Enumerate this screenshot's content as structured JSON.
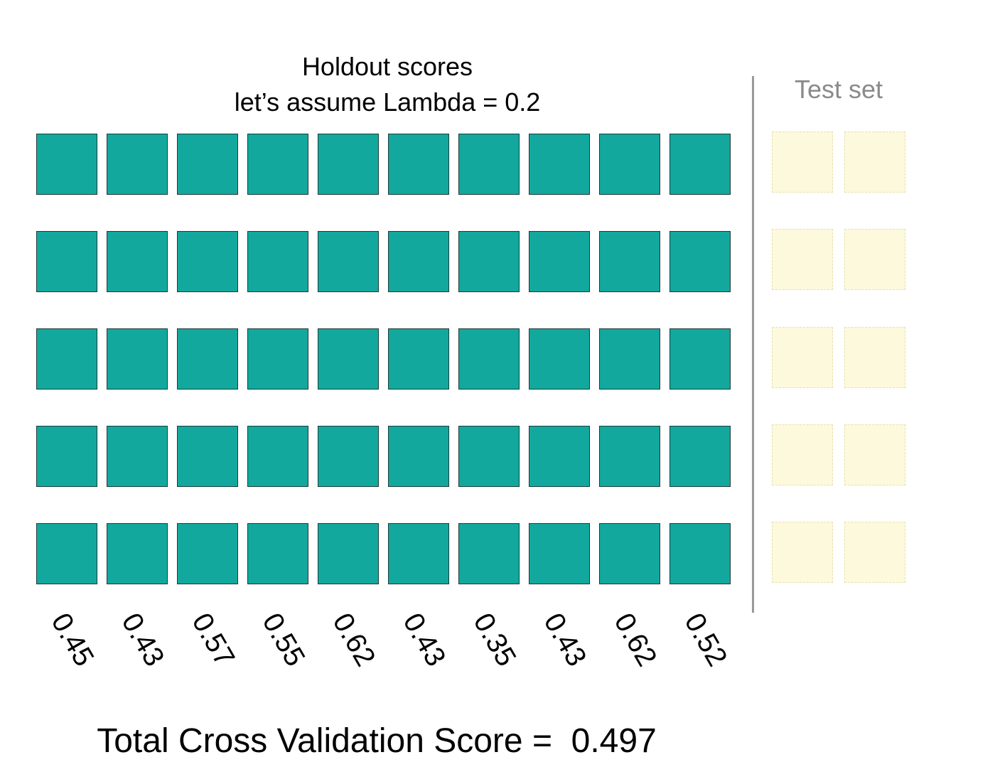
{
  "title": {
    "line1": "Holdout scores",
    "line2": "let’s assume Lambda = 0.2"
  },
  "test_set": {
    "label": "Test set",
    "columns": 2
  },
  "folds": {
    "rows": 5,
    "columns": 10,
    "scores": [
      "0.45",
      "0.43",
      "0.57",
      "0.55",
      "0.62",
      "0.43",
      "0.35",
      "0.43",
      "0.62",
      "0.52"
    ]
  },
  "total": {
    "label": "Total Cross Validation Score =  0.497"
  },
  "colors": {
    "train_fill": "#13a89e",
    "test_fill": "#fdf9dc",
    "divider": "#9a9a9a",
    "test_label": "#8a8a8a",
    "text": "#000000"
  }
}
